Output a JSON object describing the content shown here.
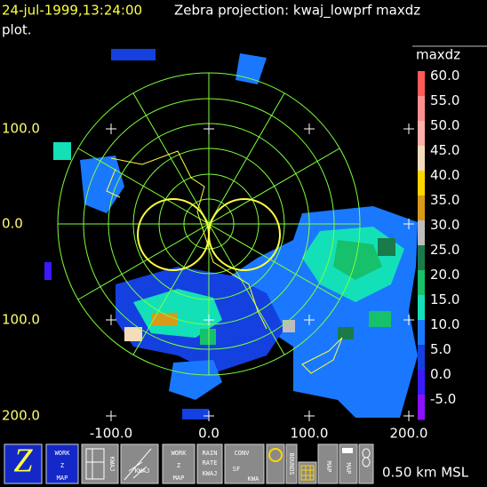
{
  "header": {
    "time": "24-jul-1999,13:24:00",
    "title": "Zebra projection: kwaj_lowprf maxdz",
    "title_cont": "plot."
  },
  "axes": {
    "y_labels": [
      "100.0",
      "0.0",
      "100.0",
      "200.0"
    ],
    "x_labels": [
      "-100.0",
      "0.0",
      "100.0",
      "200.0"
    ]
  },
  "colorbar": {
    "label": "maxdz",
    "ticks": [
      "60.0",
      "55.0",
      "50.0",
      "45.0",
      "40.0",
      "35.0",
      "30.0",
      "25.0",
      "20.0",
      "15.0",
      "10.0",
      "5.0",
      "0.0",
      "-5.0"
    ],
    "colors": [
      "#ff5a5a",
      "#ff8f8f",
      "#ffb0a8",
      "#f5dcb8",
      "#ffd500",
      "#d99a1a",
      "#bdbdbd",
      "#1a7a4a",
      "#17c06a",
      "#14e0b8",
      "#1a78ff",
      "#1440e0",
      "#3a1aff",
      "#8a10ff"
    ]
  },
  "toolbar": {
    "work_map_1": [
      "WORK",
      "Z",
      "MAP"
    ],
    "kwaj_map": "KWAJ",
    "kwaj_radar": "KWAJ",
    "work_map_2": [
      "WORK",
      "Z",
      "MAP"
    ],
    "rain": [
      "RAIN",
      "RATE",
      "KWAJ"
    ],
    "conv": [
      "CONV",
      "SF",
      "KWA"
    ],
    "bounds": "BOUNDS",
    "map_1": "MAP",
    "map_2": "MAP"
  },
  "status": "0.50 km MSL"
}
